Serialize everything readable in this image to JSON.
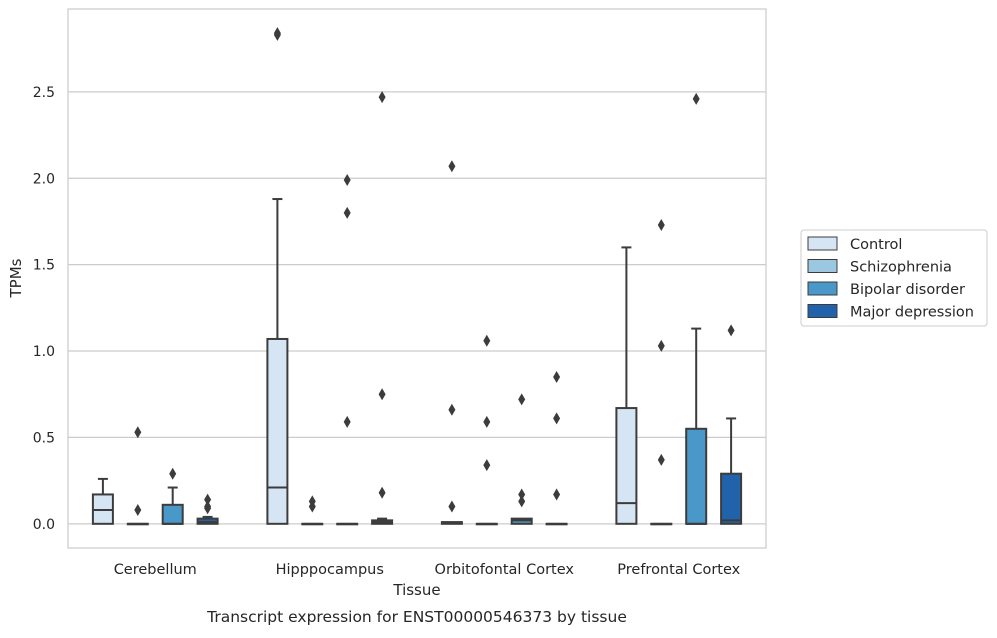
{
  "chart_data": {
    "type": "box",
    "caption": "Transcript expression for ENST00000546373 by tissue",
    "xlabel": "Tissue",
    "ylabel": "TPMs",
    "ylim": [
      -0.14,
      2.98
    ],
    "yticks": [
      0.0,
      0.5,
      1.0,
      1.5,
      2.0,
      2.5
    ],
    "ytick_labels": [
      "0.0",
      "0.5",
      "1.0",
      "1.5",
      "2.0",
      "2.5"
    ],
    "grid": "horizontal",
    "legend_position": "right",
    "categories": [
      "Cerebellum",
      "Hipppocampus",
      "Orbitofontal Cortex",
      "Prefrontal Cortex"
    ],
    "series": [
      {
        "name": "Control",
        "color": "#d6e5f4",
        "boxes": [
          {
            "q1": 0.0,
            "median": 0.08,
            "q3": 0.17,
            "whisker_low": 0.0,
            "whisker_high": 0.26,
            "outliers": []
          },
          {
            "q1": 0.0,
            "median": 0.21,
            "q3": 1.07,
            "whisker_low": 0.0,
            "whisker_high": 1.88,
            "outliers": [
              2.83,
              2.84
            ]
          },
          {
            "q1": 0.0,
            "median": 0.005,
            "q3": 0.01,
            "whisker_low": 0.0,
            "whisker_high": 0.01,
            "outliers": [
              0.1,
              0.66,
              2.07
            ]
          },
          {
            "q1": 0.0,
            "median": 0.12,
            "q3": 0.67,
            "whisker_low": 0.0,
            "whisker_high": 1.6,
            "outliers": []
          }
        ]
      },
      {
        "name": "Schizophrenia",
        "color": "#9cc7e0",
        "boxes": [
          {
            "q1": 0.0,
            "median": 0.0,
            "q3": 0.0,
            "whisker_low": 0.0,
            "whisker_high": 0.0,
            "outliers": [
              0.08,
              0.53
            ]
          },
          {
            "q1": 0.0,
            "median": 0.0,
            "q3": 0.0,
            "whisker_low": 0.0,
            "whisker_high": 0.0,
            "outliers": [
              0.1,
              0.13
            ]
          },
          {
            "q1": 0.0,
            "median": 0.0,
            "q3": 0.0,
            "whisker_low": 0.0,
            "whisker_high": 0.0,
            "outliers": [
              0.34,
              0.59,
              1.06
            ]
          },
          {
            "q1": 0.0,
            "median": 0.0,
            "q3": 0.0,
            "whisker_low": 0.0,
            "whisker_high": 0.0,
            "outliers": [
              0.37,
              1.03,
              1.73
            ]
          }
        ]
      },
      {
        "name": "Bipolar disorder",
        "color": "#4a98c9",
        "boxes": [
          {
            "q1": 0.0,
            "median": 0.0,
            "q3": 0.11,
            "whisker_low": 0.0,
            "whisker_high": 0.21,
            "outliers": [
              0.29
            ]
          },
          {
            "q1": 0.0,
            "median": 0.0,
            "q3": 0.0,
            "whisker_low": 0.0,
            "whisker_high": 0.0,
            "outliers": [
              0.59,
              1.8,
              1.99
            ]
          },
          {
            "q1": 0.0,
            "median": 0.02,
            "q3": 0.03,
            "whisker_low": 0.0,
            "whisker_high": 0.03,
            "outliers": [
              0.13,
              0.17,
              0.72
            ]
          },
          {
            "q1": 0.0,
            "median": 0.0,
            "q3": 0.55,
            "whisker_low": 0.0,
            "whisker_high": 1.13,
            "outliers": [
              2.46
            ]
          }
        ]
      },
      {
        "name": "Major depression",
        "color": "#2163aa",
        "boxes": [
          {
            "q1": 0.0,
            "median": 0.01,
            "q3": 0.03,
            "whisker_low": 0.0,
            "whisker_high": 0.04,
            "outliers": [
              0.09,
              0.1,
              0.14
            ]
          },
          {
            "q1": 0.0,
            "median": 0.01,
            "q3": 0.02,
            "whisker_low": 0.0,
            "whisker_high": 0.03,
            "outliers": [
              0.18,
              0.75,
              2.47
            ]
          },
          {
            "q1": 0.0,
            "median": 0.0,
            "q3": 0.0,
            "whisker_low": 0.0,
            "whisker_high": 0.0,
            "outliers": [
              0.17,
              0.61,
              0.85
            ]
          },
          {
            "q1": 0.0,
            "median": 0.02,
            "q3": 0.29,
            "whisker_low": 0.0,
            "whisker_high": 0.61,
            "outliers": [
              1.12
            ]
          }
        ]
      }
    ]
  }
}
